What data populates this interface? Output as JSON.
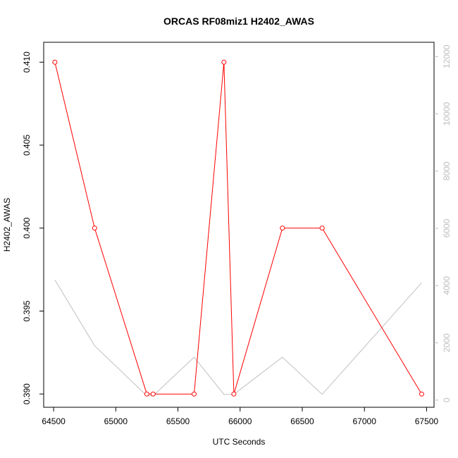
{
  "chart_data": {
    "type": "line",
    "title": "ORCAS RF08miz1 H2402_AWAS",
    "xlabel": "UTC Seconds",
    "ylabel": "H2402_AWAS",
    "xlim": [
      64420,
      67560
    ],
    "ylim": [
      0.3892,
      0.4112
    ],
    "y2lim": [
      -250,
      12500
    ],
    "x_ticks": [
      64500,
      65000,
      65500,
      66000,
      66500,
      67000,
      67500
    ],
    "y_ticks": [
      0.39,
      0.395,
      0.4,
      0.405,
      0.41
    ],
    "y2_ticks": [
      0,
      2000,
      4000,
      6000,
      8000,
      10000,
      12000
    ],
    "series": [
      {
        "axis": "left",
        "color": "#ff0000",
        "markers": "open-circle",
        "x": [
          64510,
          64830,
          65250,
          65300,
          65630,
          65870,
          65950,
          66340,
          66660,
          67460
        ],
        "y": [
          0.41,
          0.4,
          0.39,
          0.39,
          0.39,
          0.41,
          0.39,
          0.4,
          0.4,
          0.39
        ]
      },
      {
        "axis": "right",
        "color": "#c0c0c0",
        "markers": "none",
        "x": [
          64510,
          64830,
          65250,
          65300,
          65630,
          65870,
          65950,
          66340,
          66660,
          67460
        ],
        "y": [
          4200,
          1900,
          150,
          150,
          1500,
          200,
          200,
          1500,
          200,
          4100
        ]
      }
    ]
  }
}
